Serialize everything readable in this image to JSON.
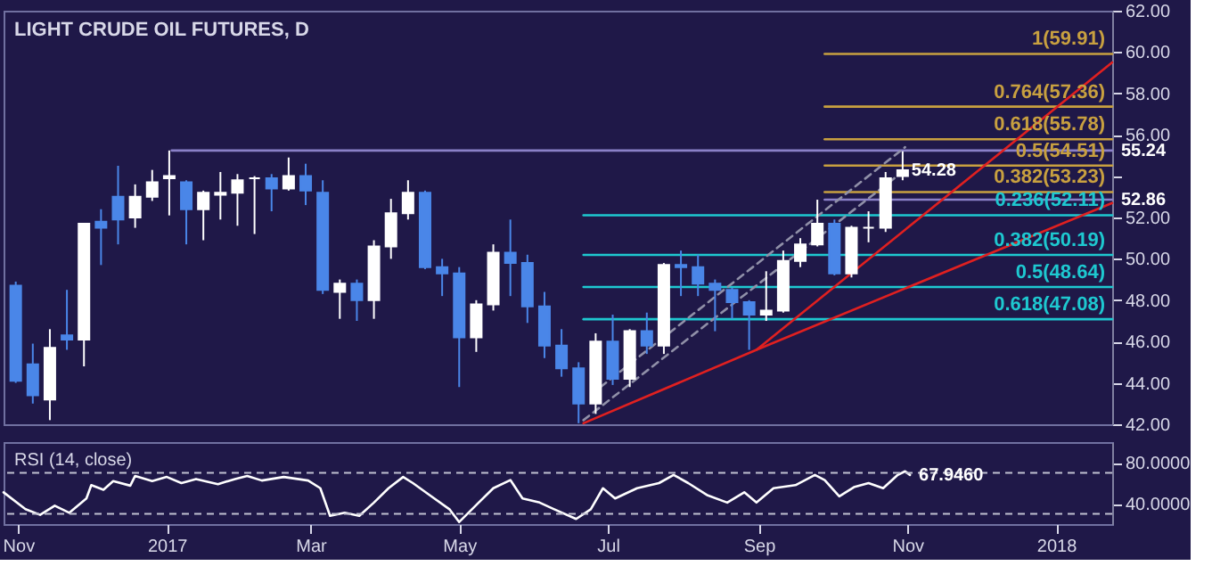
{
  "chart_data": [
    {
      "type": "candlestick",
      "title": "LIGHT CRUDE OIL FUTURES, D",
      "x": [
        "2016-10-31",
        "2016-11-07",
        "2016-11-14",
        "2016-11-21",
        "2016-11-28",
        "2016-12-05",
        "2016-12-12",
        "2016-12-19",
        "2016-12-26",
        "2017-01-02",
        "2017-01-09",
        "2017-01-16",
        "2017-01-23",
        "2017-01-30",
        "2017-02-06",
        "2017-02-13",
        "2017-02-20",
        "2017-02-27",
        "2017-03-06",
        "2017-03-13",
        "2017-03-20",
        "2017-03-27",
        "2017-04-03",
        "2017-04-10",
        "2017-04-17",
        "2017-04-24",
        "2017-05-01",
        "2017-05-08",
        "2017-05-15",
        "2017-05-22",
        "2017-05-29",
        "2017-06-05",
        "2017-06-12",
        "2017-06-19",
        "2017-06-26",
        "2017-07-03",
        "2017-07-10",
        "2017-07-17",
        "2017-07-24",
        "2017-07-31",
        "2017-08-07",
        "2017-08-14",
        "2017-08-21",
        "2017-08-28",
        "2017-09-04",
        "2017-09-11",
        "2017-09-18",
        "2017-09-25",
        "2017-10-02",
        "2017-10-09",
        "2017-10-16",
        "2017-10-23",
        "2017-10-30"
      ],
      "ohlc": [
        [
          48.7,
          48.9,
          44.0,
          44.1
        ],
        [
          44.9,
          45.9,
          43.0,
          43.4
        ],
        [
          43.2,
          46.6,
          42.2,
          45.7
        ],
        [
          46.3,
          48.5,
          45.6,
          46.1
        ],
        [
          46.1,
          51.7,
          44.8,
          51.7
        ],
        [
          51.8,
          52.4,
          49.7,
          51.5
        ],
        [
          53.0,
          54.5,
          50.7,
          51.9
        ],
        [
          52.0,
          53.6,
          51.5,
          53.0
        ],
        [
          53.0,
          54.3,
          52.8,
          53.7
        ],
        [
          53.9,
          55.24,
          52.1,
          54.0
        ],
        [
          53.7,
          53.8,
          50.7,
          52.4
        ],
        [
          52.4,
          53.3,
          50.9,
          53.2
        ],
        [
          53.1,
          54.2,
          51.9,
          53.2
        ],
        [
          53.2,
          54.1,
          51.6,
          53.8
        ],
        [
          53.9,
          54.0,
          51.2,
          53.9
        ],
        [
          53.9,
          54.1,
          52.3,
          53.4
        ],
        [
          53.4,
          54.9,
          53.3,
          54.0
        ],
        [
          54.0,
          54.6,
          52.6,
          53.3
        ],
        [
          53.2,
          53.8,
          48.3,
          48.5
        ],
        [
          48.4,
          49.0,
          47.1,
          48.8
        ],
        [
          48.8,
          49.0,
          47.0,
          48.0
        ],
        [
          48.0,
          50.9,
          47.1,
          50.6
        ],
        [
          50.6,
          52.9,
          50.0,
          52.2
        ],
        [
          52.2,
          53.8,
          51.9,
          53.2
        ],
        [
          53.2,
          53.3,
          49.5,
          49.6
        ],
        [
          49.6,
          50.0,
          48.2,
          49.3
        ],
        [
          49.3,
          49.6,
          43.8,
          46.2
        ],
        [
          46.2,
          48.0,
          45.5,
          47.8
        ],
        [
          47.8,
          50.7,
          47.5,
          50.3
        ],
        [
          50.3,
          51.9,
          48.2,
          49.8
        ],
        [
          49.8,
          50.2,
          46.9,
          47.7
        ],
        [
          47.7,
          48.4,
          45.2,
          45.8
        ],
        [
          45.8,
          46.6,
          44.3,
          44.7
        ],
        [
          44.7,
          45.0,
          42.05,
          43.0
        ],
        [
          43.0,
          46.4,
          42.5,
          46.0
        ],
        [
          46.0,
          47.3,
          43.9,
          44.2
        ],
        [
          44.2,
          46.6,
          43.8,
          46.5
        ],
        [
          46.5,
          47.4,
          45.4,
          45.8
        ],
        [
          45.8,
          49.8,
          45.4,
          49.7
        ],
        [
          49.7,
          50.4,
          48.2,
          49.6
        ],
        [
          49.6,
          50.2,
          48.2,
          48.8
        ],
        [
          48.8,
          49.0,
          46.5,
          48.5
        ],
        [
          48.5,
          48.6,
          47.1,
          47.9
        ],
        [
          47.9,
          48.0,
          45.6,
          47.3
        ],
        [
          47.3,
          49.4,
          47.0,
          47.5
        ],
        [
          47.5,
          50.4,
          47.4,
          49.9
        ],
        [
          49.9,
          51.0,
          49.6,
          50.7
        ],
        [
          50.7,
          52.86,
          50.6,
          51.7
        ],
        [
          51.7,
          51.9,
          49.2,
          49.3
        ],
        [
          49.3,
          51.6,
          49.1,
          51.5
        ],
        [
          51.5,
          52.3,
          50.8,
          51.5
        ],
        [
          51.5,
          54.2,
          51.3,
          53.9
        ],
        [
          54.0,
          55.2,
          53.8,
          54.28
        ]
      ],
      "colors": [
        "#4a86e8",
        "#4a86e8",
        "#ffffff",
        "#4a86e8",
        "#ffffff",
        "#4a86e8",
        "#4a86e8",
        "#ffffff",
        "#ffffff",
        "#ffffff",
        "#4a86e8",
        "#ffffff",
        "#ffffff",
        "#ffffff",
        "#ffffff",
        "#4a86e8",
        "#ffffff",
        "#4a86e8",
        "#4a86e8",
        "#ffffff",
        "#4a86e8",
        "#ffffff",
        "#ffffff",
        "#ffffff",
        "#4a86e8",
        "#4a86e8",
        "#4a86e8",
        "#ffffff",
        "#ffffff",
        "#4a86e8",
        "#4a86e8",
        "#4a86e8",
        "#4a86e8",
        "#4a86e8",
        "#ffffff",
        "#4a86e8",
        "#ffffff",
        "#4a86e8",
        "#ffffff",
        "#4a86e8",
        "#4a86e8",
        "#4a86e8",
        "#4a86e8",
        "#4a86e8",
        "#ffffff",
        "#ffffff",
        "#ffffff",
        "#ffffff",
        "#4a86e8",
        "#ffffff",
        "#ffffff",
        "#ffffff",
        "#ffffff"
      ],
      "series": [
        {
          "type": "line",
          "color": "#8a80c8",
          "x": [
            "2017-01-03",
            "2018-01-24"
          ],
          "values": [
            55.24,
            55.24
          ]
        },
        {
          "type": "line",
          "color": "#8a80c8",
          "x": [
            "2017-09-28",
            "2018-01-24"
          ],
          "values": [
            52.86,
            52.86
          ]
        },
        {
          "type": "line",
          "name": "1(59.91)",
          "color": "#c8a040",
          "x": [
            "2017-09-28",
            "2018-01-24"
          ],
          "values": [
            59.91,
            59.91
          ]
        },
        {
          "type": "line",
          "name": "0.764(57.36)",
          "color": "#c8a040",
          "x": [
            "2017-09-28",
            "2018-01-24"
          ],
          "values": [
            57.36,
            57.36
          ]
        },
        {
          "type": "line",
          "name": "0.618(55.78)",
          "color": "#c8a040",
          "x": [
            "2017-09-28",
            "2018-01-24"
          ],
          "values": [
            55.78,
            55.78
          ]
        },
        {
          "type": "line",
          "name": "0.5(54.51)",
          "color": "#c8a040",
          "x": [
            "2017-09-28",
            "2018-01-24"
          ],
          "values": [
            54.51,
            54.51
          ]
        },
        {
          "type": "line",
          "name": "0.382(53.23)",
          "color": "#c8a040",
          "x": [
            "2017-09-28",
            "2018-01-24"
          ],
          "values": [
            53.23,
            53.23
          ]
        },
        {
          "type": "line",
          "name": "0.236(52.11)",
          "color": "#1ec8d0",
          "x": [
            "2017-06-21",
            "2018-01-24"
          ],
          "values": [
            52.11,
            52.11
          ]
        },
        {
          "type": "line",
          "name": "0.382(50.19)",
          "color": "#1ec8d0",
          "x": [
            "2017-06-21",
            "2018-01-24"
          ],
          "values": [
            50.19,
            50.19
          ]
        },
        {
          "type": "line",
          "name": "0.5(48.64)",
          "color": "#1ec8d0",
          "x": [
            "2017-06-21",
            "2018-01-24"
          ],
          "values": [
            48.64,
            48.64
          ]
        },
        {
          "type": "line",
          "name": "0.618(47.08)",
          "color": "#1ec8d0",
          "x": [
            "2017-06-21",
            "2018-01-24"
          ],
          "values": [
            47.08,
            47.08
          ]
        },
        {
          "type": "line",
          "color": "#9090a8",
          "line_style": "dashed",
          "x": [
            "2017-06-21",
            "2017-10-31"
          ],
          "values": [
            42.2,
            54.3
          ]
        },
        {
          "type": "line",
          "color": "#9090a8",
          "line_style": "dashed",
          "x": [
            "2017-06-28",
            "2017-10-31"
          ],
          "values": [
            43.8,
            55.4
          ]
        },
        {
          "type": "line",
          "color": "#e02020",
          "x": [
            "2017-06-21",
            "2017-08-31",
            "2018-01-24"
          ],
          "values": [
            42.05,
            45.6,
            52.7
          ]
        },
        {
          "type": "line",
          "color": "#e02020",
          "x": [
            "2017-08-31",
            "2018-01-24"
          ],
          "values": [
            45.6,
            59.5
          ]
        }
      ],
      "annotations": [
        {
          "text": "55.24",
          "x": "2018-01-24",
          "y": 55.24
        },
        {
          "text": "54.28",
          "x": "2017-10-30",
          "y": 54.28
        },
        {
          "text": "52.86",
          "x": "2018-01-24",
          "y": 52.86
        }
      ],
      "xlim": [
        "2016-10-26",
        "2018-01-24"
      ],
      "ylim": [
        42,
        62
      ],
      "yticks": [
        {
          "value": 42,
          "label": "42.00"
        },
        {
          "value": 44,
          "label": "44.00"
        },
        {
          "value": 46,
          "label": "46.00"
        },
        {
          "value": 48,
          "label": "48.00"
        },
        {
          "value": 50,
          "label": "50.00"
        },
        {
          "value": 52,
          "label": "52.00"
        },
        {
          "value": 54,
          "label": null
        },
        {
          "value": 56,
          "label": "56.00"
        },
        {
          "value": 58,
          "label": "58.00"
        },
        {
          "value": 60,
          "label": "60.00"
        },
        {
          "value": 62,
          "label": "62.00"
        }
      ],
      "tick_labels": "y"
    },
    {
      "type": "line",
      "title": "RSI (14, close)",
      "x": [
        "2016-10-26",
        "2016-11-04",
        "2016-11-10",
        "2016-11-16",
        "2016-11-22",
        "2016-11-29",
        "2016-12-01",
        "2016-12-06",
        "2016-12-10",
        "2016-12-17",
        "2016-12-19",
        "2016-12-26",
        "2017-01-01",
        "2017-01-07",
        "2017-01-13",
        "2017-01-22",
        "2017-01-29",
        "2017-02-03",
        "2017-02-09",
        "2017-02-18",
        "2017-02-28",
        "2017-03-05",
        "2017-03-09",
        "2017-03-15",
        "2017-03-21",
        "2017-03-27",
        "2017-04-02",
        "2017-04-08",
        "2017-04-12",
        "2017-04-19",
        "2017-04-27",
        "2017-05-01",
        "2017-05-09",
        "2017-05-15",
        "2017-05-22",
        "2017-05-27",
        "2017-06-03",
        "2017-06-09",
        "2017-06-18",
        "2017-06-24",
        "2017-06-29",
        "2017-07-04",
        "2017-07-13",
        "2017-07-22",
        "2017-07-28",
        "2017-08-03",
        "2017-08-11",
        "2017-08-19",
        "2017-08-26",
        "2017-08-31",
        "2017-09-07",
        "2017-09-16",
        "2017-09-24",
        "2017-09-28",
        "2017-10-04",
        "2017-10-10",
        "2017-10-16",
        "2017-10-22",
        "2017-10-28",
        "2017-10-31",
        "2017-11-02"
      ],
      "series": [
        {
          "color": "#ffffff",
          "values": [
            51,
            34.5,
            29,
            38,
            31,
            45,
            58,
            53.5,
            62,
            57.5,
            67,
            62,
            66,
            60,
            64,
            59,
            64,
            67,
            62.5,
            66,
            62.5,
            55,
            28,
            31,
            28,
            41,
            55,
            66,
            60,
            48,
            34.5,
            22,
            41,
            55,
            63,
            45,
            41,
            34.5,
            25,
            34.5,
            55,
            45,
            55,
            60,
            68,
            60,
            48,
            41,
            51,
            41,
            55,
            58,
            68,
            63,
            47,
            56,
            60,
            55,
            68,
            71.5,
            67.946
          ]
        }
      ],
      "annotations": [
        {
          "text": "67.9460",
          "x": "2017-11-02",
          "y": 67.946
        }
      ],
      "ref_lines": [
        {
          "axis": "y",
          "value": 70,
          "color": "#c0c0d0",
          "line_style": "dashed"
        },
        {
          "axis": "y",
          "value": 30,
          "color": "#c0c0d0",
          "line_style": "dashed"
        }
      ],
      "xlim": [
        "2016-10-26",
        "2018-01-24"
      ],
      "xticks": [
        {
          "value": "2016-11-01",
          "label": "Nov"
        },
        {
          "value": "2017-01-01",
          "label": "2017"
        },
        {
          "value": "2017-03-01",
          "label": "Mar"
        },
        {
          "value": "2017-05-01",
          "label": "May"
        },
        {
          "value": "2017-07-01",
          "label": "Jul"
        },
        {
          "value": "2017-09-01",
          "label": "Sep"
        },
        {
          "value": "2017-11-01",
          "label": "Nov"
        },
        {
          "value": "2018-01-01",
          "label": "2018"
        }
      ],
      "ylim": [
        20,
        100
      ],
      "yticks": [
        {
          "value": 80,
          "label": "80.0000"
        },
        {
          "value": 40,
          "label": "40.0000"
        }
      ]
    }
  ]
}
